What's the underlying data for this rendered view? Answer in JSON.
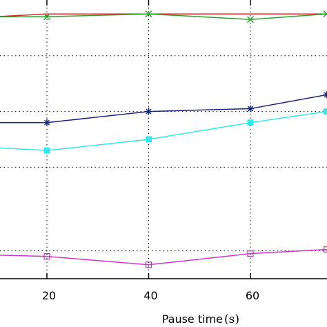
{
  "chart_data": {
    "type": "line",
    "title": "",
    "xlabel": "Pause time",
    "xlabel_unit": "(s)",
    "ylabel": "",
    "x_ticks": [
      20,
      40,
      60
    ],
    "xlim": [
      10,
      75
    ],
    "ylim": [
      0,
      100
    ],
    "y_gridlines": [
      10,
      40,
      60,
      80
    ],
    "grid": true,
    "series": [
      {
        "color": "#d62728",
        "marker": "none",
        "x": [
          10,
          20,
          40,
          60,
          75
        ],
        "y": [
          94,
          95,
          95,
          95,
          95
        ]
      },
      {
        "color": "#2ca02c",
        "marker": "x",
        "x": [
          10,
          20,
          40,
          60,
          75
        ],
        "y": [
          94,
          94,
          95,
          93,
          95
        ]
      },
      {
        "color": "#1a237e",
        "marker": "star",
        "x": [
          10,
          20,
          40,
          60,
          75
        ],
        "y": [
          56,
          56,
          60,
          61,
          66
        ]
      },
      {
        "color": "#33e8e8",
        "marker": "square",
        "x": [
          10,
          20,
          40,
          60,
          75
        ],
        "y": [
          47,
          46,
          50,
          56,
          60
        ]
      },
      {
        "color": "#cc33cc",
        "marker": "square-open",
        "x": [
          10,
          20,
          40,
          60,
          75
        ],
        "y": [
          8.5,
          8,
          5,
          9,
          10.5
        ]
      }
    ]
  }
}
